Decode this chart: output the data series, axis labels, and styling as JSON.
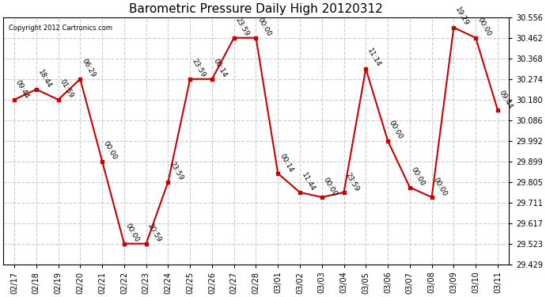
{
  "title": "Barometric Pressure Daily High 20120312",
  "copyright": "Copyright 2012 Cartronics.com",
  "x_labels": [
    "02/17",
    "02/18",
    "02/19",
    "02/20",
    "02/21",
    "02/22",
    "02/23",
    "02/24",
    "02/25",
    "02/26",
    "02/27",
    "02/28",
    "03/01",
    "03/02",
    "03/03",
    "03/04",
    "03/05",
    "03/06",
    "03/07",
    "03/08",
    "03/09",
    "03/10",
    "03/11"
  ],
  "y_values": [
    30.18,
    30.227,
    30.18,
    30.274,
    29.899,
    29.523,
    29.523,
    29.805,
    30.274,
    30.274,
    30.462,
    30.462,
    29.843,
    29.757,
    29.735,
    29.757,
    30.321,
    29.992,
    29.78,
    29.735,
    30.509,
    30.462,
    30.133
  ],
  "point_labels": [
    "09:44",
    "18:44",
    "01:59",
    "06:29",
    "00:00",
    "00:00",
    "20:59",
    "23:59",
    "23:59",
    "00:14",
    "23:59",
    "00:00",
    "00:14",
    "11:44",
    "00:00",
    "23:59",
    "11:14",
    "00:00",
    "00:00",
    "00:00",
    "19:29",
    "00:00",
    "09:44"
  ],
  "y_ticks": [
    29.429,
    29.523,
    29.617,
    29.711,
    29.805,
    29.899,
    29.992,
    30.086,
    30.18,
    30.274,
    30.368,
    30.462,
    30.556
  ],
  "y_min": 29.429,
  "y_max": 30.556,
  "line_color": "#cc0000",
  "marker_color": "#cc0000",
  "bg_color": "#ffffff",
  "plot_bg_color": "#ffffff",
  "grid_color": "#cccccc",
  "title_fontsize": 11,
  "tick_fontsize": 7,
  "label_fontsize": 6.5
}
